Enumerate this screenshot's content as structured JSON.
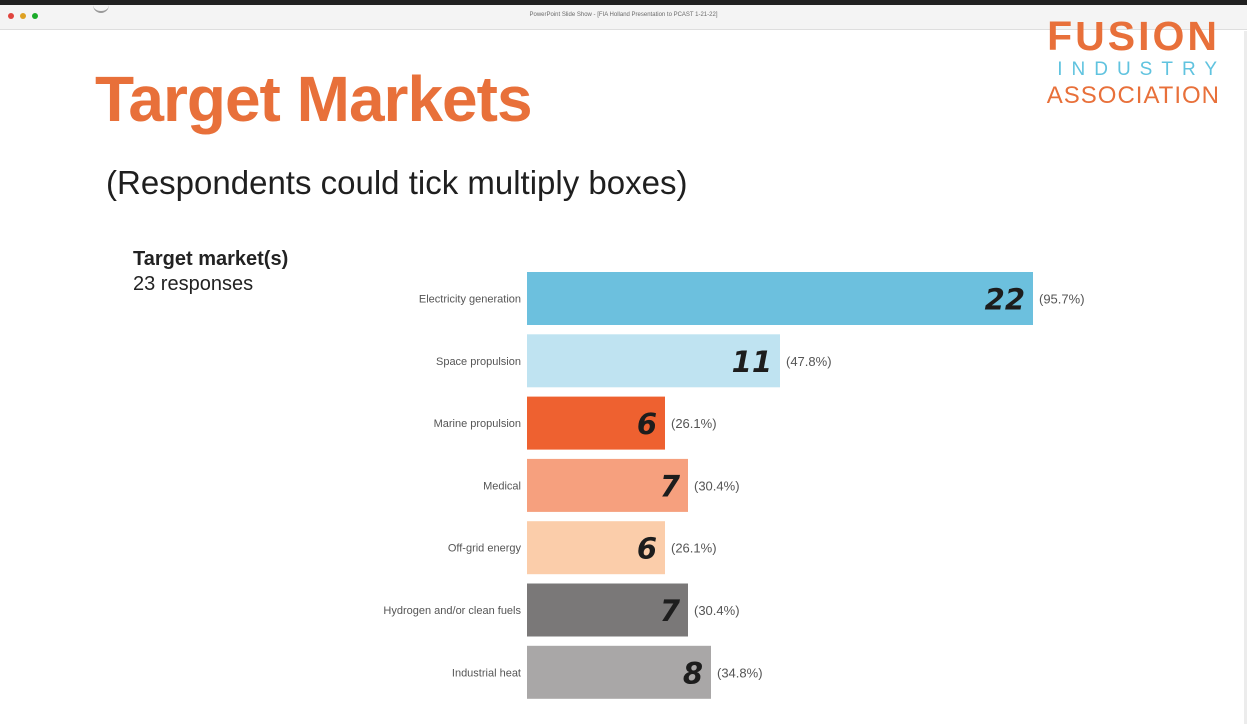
{
  "window": {
    "title": "PowerPoint Slide Show - [FIA Holland Presentation to PCAST 1-21-22]"
  },
  "slide": {
    "title": "Target Markets",
    "subtitle": "(Respondents could tick multiply boxes)"
  },
  "logo": {
    "line1": "FUSION",
    "line2": "INDUSTRY",
    "line3": "ASSOCIATION"
  },
  "chart_header": {
    "title": "Target market(s)",
    "responses": "23 responses"
  },
  "chart_data": {
    "type": "bar",
    "orientation": "horizontal",
    "title": "Target market(s)",
    "subtitle": "23 responses",
    "categories": [
      "Electricity generation",
      "Space propulsion",
      "Marine propulsion",
      "Medical",
      "Off-grid energy",
      "Hydrogen and/or clean fuels",
      "Industrial heat"
    ],
    "values": [
      22,
      11,
      6,
      7,
      6,
      7,
      8
    ],
    "percent_labels": [
      "(95.7%)",
      "(47.8%)",
      "(26.1%)",
      "(30.4%)",
      "(26.1%)",
      "(30.4%)",
      "(34.8%)"
    ],
    "colors": [
      "#6cc0de",
      "#bfe3f1",
      "#ee6130",
      "#f6a07e",
      "#fbcdaa",
      "#7a7878",
      "#a9a7a7"
    ],
    "xlim": [
      0,
      22
    ],
    "grid": false,
    "legend": "none"
  }
}
